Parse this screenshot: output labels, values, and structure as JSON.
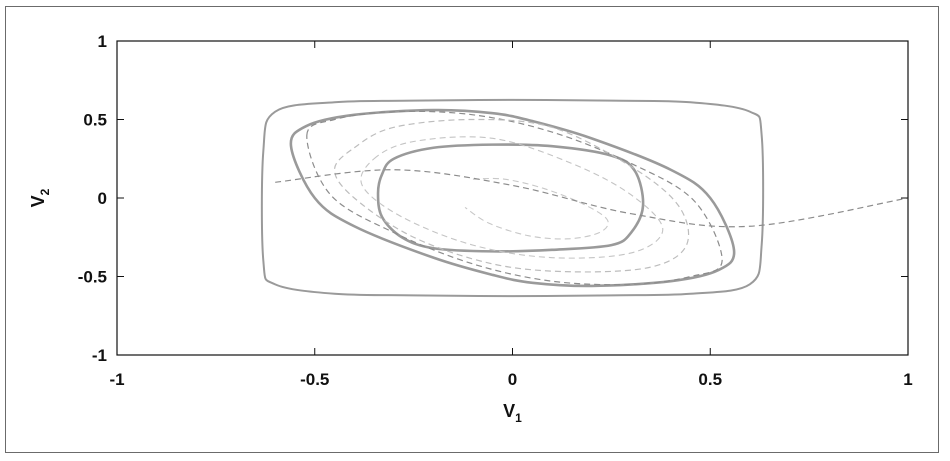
{
  "chart_data": {
    "type": "line",
    "title": "",
    "xlabel": "V",
    "xlabel_subscript": "1",
    "ylabel": "V",
    "ylabel_subscript": "2",
    "xlim": [
      -1,
      1
    ],
    "ylim": [
      -1,
      1
    ],
    "xticks": [
      -1,
      -0.5,
      0,
      0.5,
      1
    ],
    "yticks": [
      -1,
      -0.5,
      0,
      0.5,
      1
    ],
    "xtick_labels": [
      "-1",
      "-0.5",
      "0",
      "0.5",
      "1"
    ],
    "ytick_labels": [
      "-1",
      "-0.5",
      "0",
      "0.5",
      "1"
    ],
    "grid": false,
    "series": [
      {
        "style": "solid",
        "color": "#9a9a9a",
        "width": 2,
        "closed": true,
        "x": [
          -0.25,
          0.0,
          0.25,
          0.45,
          0.6,
          0.63,
          0.63,
          0.6,
          0.45,
          0.25,
          0.0,
          -0.25,
          -0.45,
          -0.6,
          -0.63,
          -0.63,
          -0.6,
          -0.45
        ],
        "y": [
          0.62,
          0.625,
          0.62,
          0.61,
          0.55,
          0.4,
          -0.3,
          -0.55,
          -0.61,
          -0.62,
          -0.625,
          -0.62,
          -0.61,
          -0.55,
          -0.4,
          0.3,
          0.55,
          0.61
        ]
      },
      {
        "style": "solid",
        "color": "#9a9a9a",
        "width": 2.6,
        "closed": true,
        "x": [
          -0.56,
          -0.52,
          -0.4,
          -0.2,
          -0.05,
          0.05,
          0.2,
          0.4,
          0.5,
          0.56,
          0.52,
          0.4,
          0.2,
          0.05,
          -0.05,
          -0.2,
          -0.4,
          -0.5
        ],
        "y": [
          0.33,
          0.46,
          0.53,
          0.56,
          0.54,
          0.49,
          0.38,
          0.18,
          0.0,
          -0.33,
          -0.46,
          -0.53,
          -0.56,
          -0.54,
          -0.49,
          -0.38,
          -0.18,
          0.0
        ]
      },
      {
        "style": "solid",
        "color": "#9a9a9a",
        "width": 2.6,
        "closed": true,
        "x": [
          -0.33,
          -0.3,
          -0.2,
          -0.05,
          0.1,
          0.25,
          0.31,
          0.33,
          0.3,
          0.25,
          0.1,
          -0.05,
          -0.2,
          -0.28,
          -0.33,
          -0.34
        ],
        "y": [
          0.15,
          0.25,
          0.32,
          0.34,
          0.33,
          0.27,
          0.17,
          -0.05,
          -0.22,
          -0.3,
          -0.33,
          -0.34,
          -0.32,
          -0.25,
          -0.12,
          0.03
        ]
      },
      {
        "style": "dashed",
        "color": "#8c8c8c",
        "width": 1.2,
        "closed": true,
        "x": [
          -0.52,
          -0.45,
          -0.3,
          -0.1,
          0.1,
          0.3,
          0.46,
          0.53,
          0.45,
          0.3,
          0.1,
          -0.1,
          -0.3,
          -0.46
        ],
        "y": [
          0.4,
          0.5,
          0.55,
          0.53,
          0.42,
          0.22,
          -0.02,
          -0.4,
          -0.5,
          -0.55,
          -0.53,
          -0.42,
          -0.22,
          0.02
        ]
      },
      {
        "style": "dashed",
        "color": "#bdbdbd",
        "width": 1.2,
        "closed": true,
        "x": [
          -0.4,
          -0.3,
          -0.1,
          0.1,
          0.3,
          0.42,
          0.44,
          0.35,
          0.15,
          -0.05,
          -0.25,
          -0.4,
          -0.45
        ],
        "y": [
          0.32,
          0.45,
          0.5,
          0.45,
          0.2,
          -0.05,
          -0.3,
          -0.44,
          -0.47,
          -0.42,
          -0.25,
          0.0,
          0.18
        ]
      },
      {
        "style": "dashed",
        "color": "#c4c4c4",
        "width": 1.1,
        "closed": true,
        "x": [
          -0.35,
          -0.25,
          -0.05,
          0.15,
          0.3,
          0.38,
          0.3,
          0.1,
          -0.1,
          -0.28,
          -0.38
        ],
        "y": [
          0.25,
          0.36,
          0.38,
          0.22,
          0.02,
          -0.2,
          -0.35,
          -0.38,
          -0.3,
          -0.12,
          0.08
        ]
      },
      {
        "style": "dashed",
        "color": "#c8c8c8",
        "width": 1.1,
        "closed": false,
        "x": [
          -0.1,
          -0.02,
          0.08,
          0.18,
          0.24,
          0.22,
          0.14,
          0.04,
          -0.06,
          -0.12
        ],
        "y": [
          0.12,
          0.12,
          0.06,
          -0.04,
          -0.14,
          -0.22,
          -0.26,
          -0.24,
          -0.16,
          -0.06
        ]
      },
      {
        "style": "dashed",
        "color": "#8c8c8c",
        "width": 1.2,
        "closed": false,
        "x": [
          -0.6,
          -0.3,
          0.0,
          0.3,
          0.6,
          1.0
        ],
        "y": [
          0.1,
          0.18,
          0.08,
          -0.1,
          -0.18,
          0.0
        ]
      }
    ]
  }
}
